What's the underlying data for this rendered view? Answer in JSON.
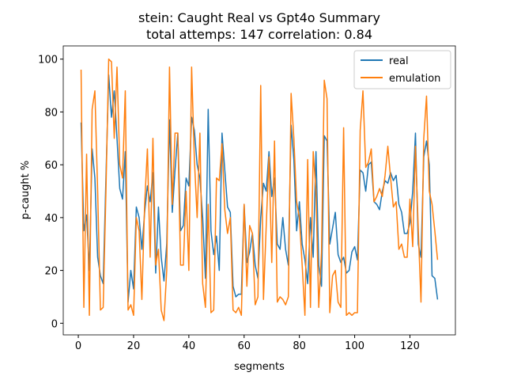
{
  "chart_data": {
    "type": "line",
    "title": "stein: Caught Real vs Gpt4o Summary",
    "subtitle": "total attemps: 147 correlation: 0.84",
    "xlabel": "segments",
    "ylabel": "p-caught %",
    "x": [
      1,
      2,
      3,
      4,
      5,
      6,
      7,
      8,
      9,
      10,
      11,
      12,
      13,
      14,
      15,
      16,
      17,
      18,
      19,
      20,
      21,
      22,
      23,
      24,
      25,
      26,
      27,
      28,
      29,
      30,
      31,
      32,
      33,
      34,
      35,
      36,
      37,
      38,
      39,
      40,
      41,
      42,
      43,
      44,
      45,
      46,
      47,
      48,
      49,
      50,
      51,
      52,
      53,
      54,
      55,
      56,
      57,
      58,
      59,
      60,
      61,
      62,
      63,
      64,
      65,
      66,
      67,
      68,
      69,
      70,
      71,
      72,
      73,
      74,
      75,
      76,
      77,
      78,
      79,
      80,
      81,
      82,
      83,
      84,
      85,
      86,
      87,
      88,
      89,
      90,
      91,
      92,
      93,
      94,
      95,
      96,
      97,
      98,
      99,
      100,
      101,
      102,
      103,
      104,
      105,
      106,
      107,
      108,
      109,
      110,
      111,
      112,
      113,
      114,
      115,
      116,
      117,
      118,
      119,
      120,
      121,
      122,
      123,
      124,
      125,
      126,
      127,
      128,
      129,
      130
    ],
    "series": [
      {
        "name": "real",
        "color": "#1f77b4",
        "values": [
          76,
          35,
          41,
          20,
          66,
          55,
          25,
          18,
          15,
          55,
          94,
          78,
          88,
          70,
          51,
          47,
          65,
          8,
          20,
          13,
          44,
          40,
          28,
          42,
          52,
          46,
          57,
          19,
          44,
          25,
          16,
          30,
          77,
          42,
          58,
          72,
          35,
          37,
          55,
          52,
          78,
          73,
          60,
          55,
          40,
          17,
          81,
          35,
          26,
          33,
          20,
          72,
          58,
          44,
          42,
          14,
          10,
          11,
          11,
          45,
          23,
          27,
          34,
          22,
          17,
          40,
          53,
          50,
          65,
          48,
          55,
          30,
          28,
          40,
          28,
          22,
          75,
          62,
          35,
          46,
          30,
          24,
          15,
          40,
          25,
          65,
          22,
          14,
          71,
          69,
          30,
          36,
          42,
          26,
          23,
          25,
          19,
          20,
          27,
          29,
          24,
          58,
          57,
          50,
          60,
          61,
          46,
          45,
          43,
          50,
          54,
          53,
          57,
          54,
          56,
          45,
          42,
          34,
          34,
          38,
          50,
          72,
          30,
          25,
          63,
          69,
          60,
          18,
          17,
          9
        ]
      },
      {
        "name": "emulation",
        "color": "#ff7f0e",
        "values": [
          96,
          6,
          64,
          3,
          81,
          88,
          50,
          5,
          6,
          50,
          100,
          99,
          70,
          97,
          60,
          55,
          88,
          5,
          7,
          3,
          40,
          35,
          9,
          45,
          66,
          25,
          70,
          22,
          28,
          5,
          1,
          20,
          97,
          45,
          72,
          72,
          22,
          22,
          50,
          20,
          97,
          62,
          40,
          72,
          15,
          6,
          45,
          4,
          5,
          55,
          54,
          68,
          43,
          34,
          40,
          5,
          4,
          6,
          3,
          45,
          14,
          37,
          34,
          7,
          10,
          90,
          9,
          37,
          63,
          23,
          69,
          8,
          10,
          9,
          7,
          10,
          87,
          70,
          46,
          40,
          22,
          3,
          62,
          6,
          65,
          50,
          6,
          27,
          92,
          85,
          4,
          18,
          20,
          8,
          6,
          74,
          3,
          4,
          3,
          4,
          4,
          73,
          88,
          59,
          61,
          66,
          46,
          48,
          51,
          48,
          56,
          67,
          55,
          44,
          46,
          28,
          30,
          25,
          25,
          47,
          29,
          67,
          36,
          8,
          70,
          86,
          50,
          45,
          35,
          24
        ]
      }
    ],
    "xlim": [
      -5.45,
      136.45
    ],
    "ylim": [
      -4.4,
      105
    ],
    "xticks": [
      0,
      20,
      40,
      60,
      80,
      100,
      120
    ],
    "yticks": [
      0,
      20,
      40,
      60,
      80,
      100
    ],
    "legend": "upper right"
  }
}
